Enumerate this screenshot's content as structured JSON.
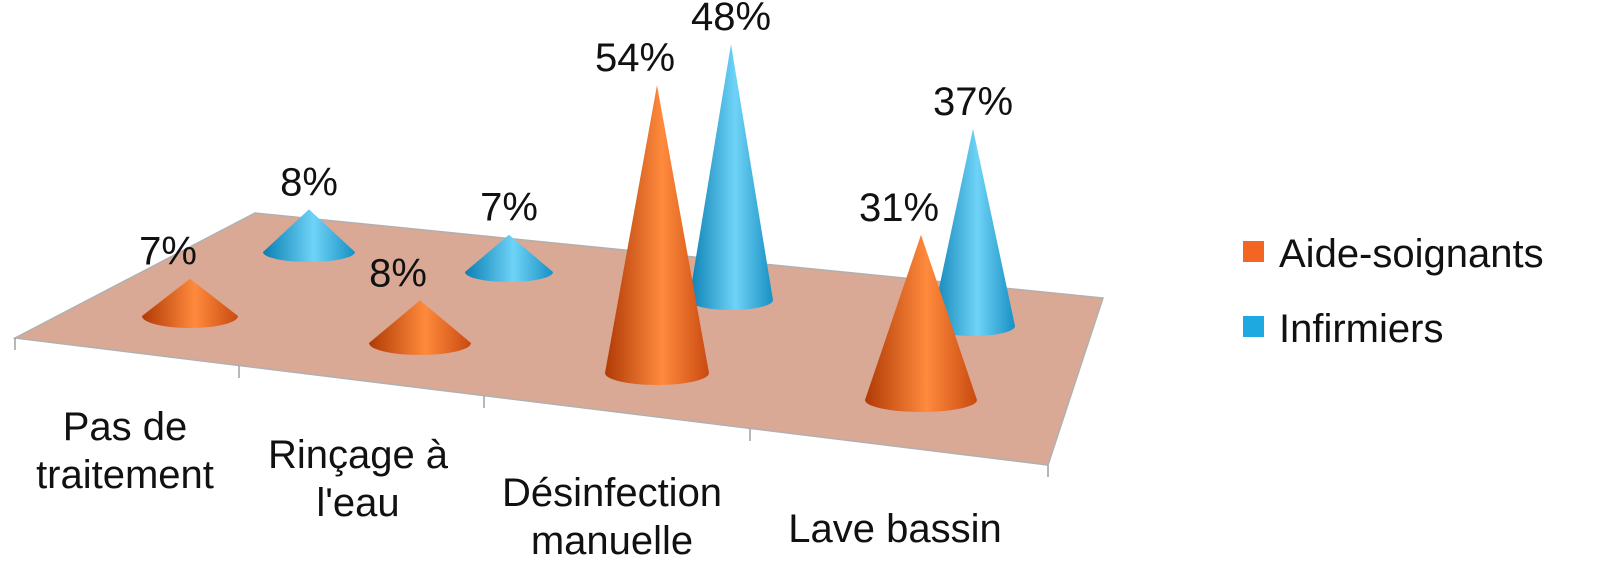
{
  "chart_data": {
    "type": "bar",
    "style": "3d-cone",
    "categories": [
      "Pas de traitement",
      "Rinçage à l'eau",
      "Désinfection manuelle",
      "Lave bassin"
    ],
    "category_lines": [
      [
        "Pas de",
        "traitement"
      ],
      [
        "Rinçage à",
        "l'eau"
      ],
      [
        "Désinfection",
        "manuelle"
      ],
      [
        "Lave bassin"
      ]
    ],
    "series": [
      {
        "name": "Aide-soignants",
        "values": [
          7,
          8,
          54,
          31
        ],
        "labels": [
          "7%",
          "8%",
          "54%",
          "31%"
        ],
        "color": "#F26522"
      },
      {
        "name": "Infirmiers",
        "values": [
          8,
          7,
          48,
          37
        ],
        "labels": [
          "8%",
          "7%",
          "48%",
          "37%"
        ],
        "color": "#1EA9E1"
      }
    ],
    "unit": "%",
    "floor_color": "#D9A995",
    "legend_position": "right",
    "grid": false
  }
}
